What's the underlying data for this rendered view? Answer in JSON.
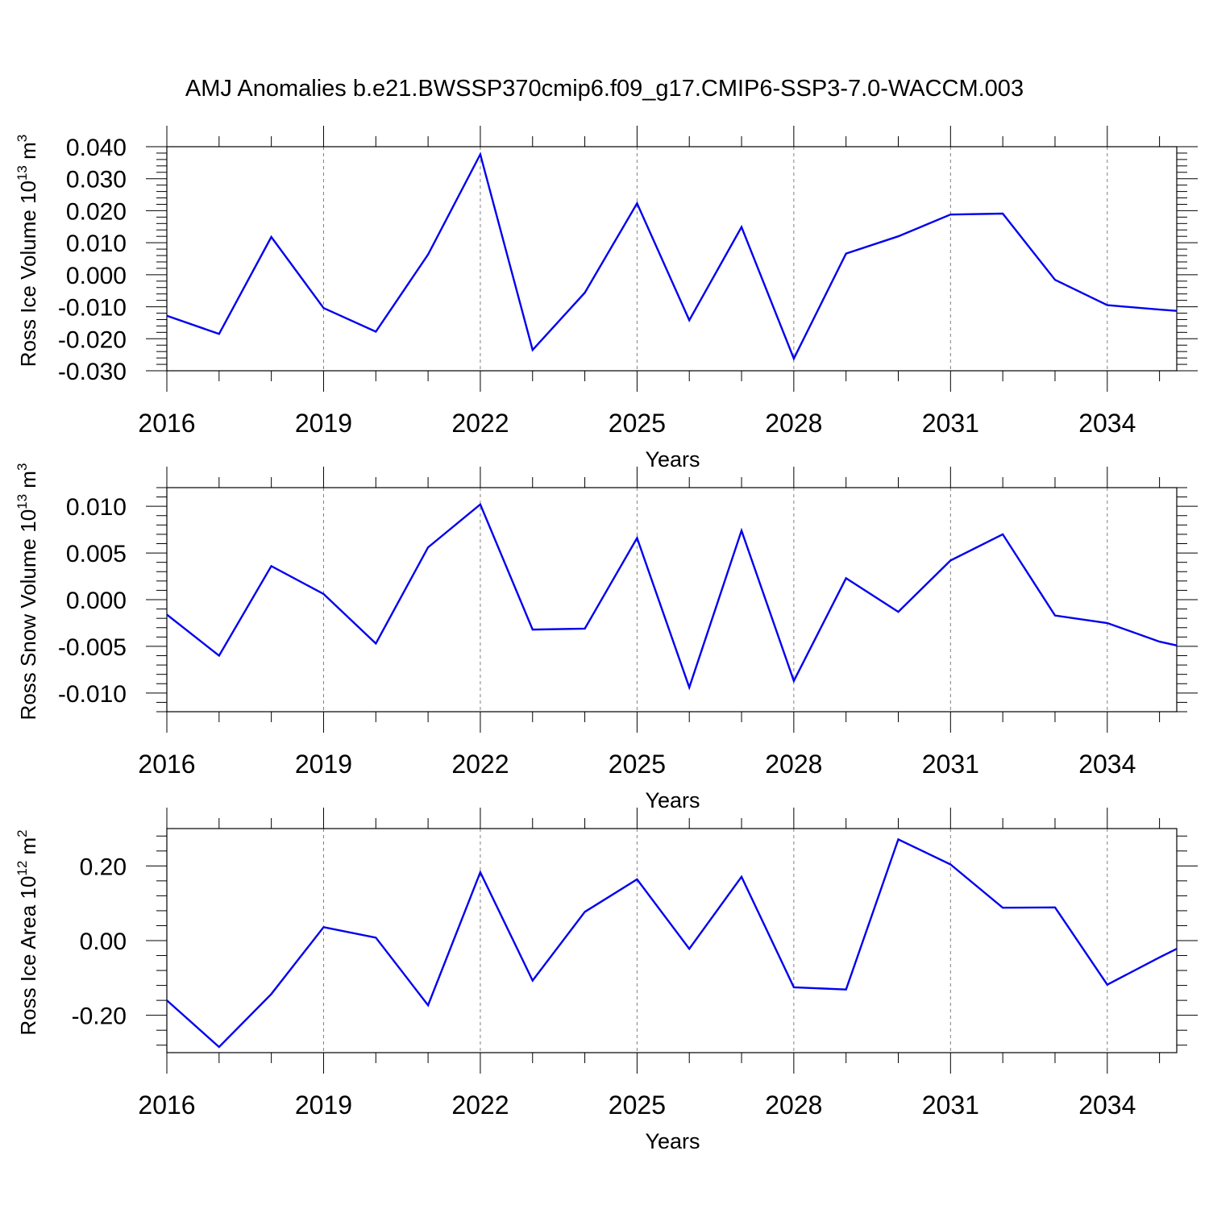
{
  "title": "AMJ Anomalies b.e21.BWSSP370cmip6.f09_g17.CMIP6-SSP3-7.0-WACCM.003",
  "chart_data": [
    {
      "type": "line",
      "ylabel": {
        "text": "Ross Ice Volume 10",
        "sup": "13",
        "unit": " m",
        "unit_sup": "3"
      },
      "xlabel": "Years",
      "xlim": [
        2016,
        2035.33
      ],
      "ylim": [
        -0.03,
        0.04
      ],
      "yticks": [
        -0.03,
        -0.02,
        -0.01,
        0.0,
        0.01,
        0.02,
        0.03,
        0.04
      ],
      "ytick_labels": [
        "-0.030",
        "-0.020",
        "-0.010",
        "0.000",
        "0.010",
        "0.020",
        "0.030",
        "0.040"
      ],
      "xticks": [
        2016,
        2019,
        2022,
        2025,
        2028,
        2031,
        2034
      ],
      "xtick_labels": [
        "2016",
        "2019",
        "2022",
        "2025",
        "2028",
        "2031",
        "2034"
      ],
      "grid_x": true,
      "color": "#0000ee",
      "x": [
        2016,
        2017,
        2018,
        2019,
        2020,
        2021,
        2022,
        2023,
        2024,
        2025,
        2026,
        2027,
        2028,
        2029,
        2030,
        2031,
        2032,
        2033,
        2034,
        2035,
        2035.33
      ],
      "values": [
        -0.0128,
        -0.0185,
        0.0118,
        -0.0104,
        -0.0178,
        0.0063,
        0.0376,
        -0.0235,
        -0.0056,
        0.0223,
        -0.0142,
        0.0149,
        -0.0262,
        0.0066,
        0.012,
        0.0188,
        0.0191,
        -0.0016,
        -0.0095,
        -0.0109,
        -0.0113
      ]
    },
    {
      "type": "line",
      "ylabel": {
        "text": "Ross Snow Volume 10",
        "sup": "13",
        "unit": " m",
        "unit_sup": "3"
      },
      "xlabel": "Years",
      "xlim": [
        2016,
        2035.33
      ],
      "ylim": [
        -0.012,
        0.012
      ],
      "yticks": [
        -0.01,
        -0.005,
        0.0,
        0.005,
        0.01
      ],
      "ytick_labels": [
        "-0.010",
        "-0.005",
        "0.000",
        "0.005",
        "0.010"
      ],
      "xticks": [
        2016,
        2019,
        2022,
        2025,
        2028,
        2031,
        2034
      ],
      "xtick_labels": [
        "2016",
        "2019",
        "2022",
        "2025",
        "2028",
        "2031",
        "2034"
      ],
      "grid_x": true,
      "color": "#0000ee",
      "x": [
        2016,
        2017,
        2018,
        2019,
        2020,
        2021,
        2022,
        2023,
        2024,
        2025,
        2026,
        2027,
        2028,
        2029,
        2030,
        2031,
        2032,
        2033,
        2034,
        2035,
        2035.33
      ],
      "values": [
        -0.0016,
        -0.006,
        0.0036,
        0.0006,
        -0.0047,
        0.0056,
        0.0102,
        -0.0032,
        -0.0031,
        0.0066,
        -0.0094,
        0.0074,
        -0.0087,
        0.0023,
        -0.0013,
        0.0042,
        0.007,
        -0.0017,
        -0.0025,
        -0.0045,
        -0.0049
      ]
    },
    {
      "type": "line",
      "ylabel": {
        "text": "Ross Ice Area 10",
        "sup": "12",
        "unit": " m",
        "unit_sup": "2"
      },
      "xlabel": "Years",
      "xlim": [
        2016,
        2035.33
      ],
      "ylim": [
        -0.3,
        0.3
      ],
      "yticks": [
        -0.2,
        0.0,
        0.2
      ],
      "ytick_labels": [
        "-0.20",
        "0.00",
        "0.20"
      ],
      "xticks": [
        2016,
        2019,
        2022,
        2025,
        2028,
        2031,
        2034
      ],
      "xtick_labels": [
        "2016",
        "2019",
        "2022",
        "2025",
        "2028",
        "2031",
        "2034"
      ],
      "grid_x": true,
      "color": "#0000ee",
      "x": [
        2016,
        2017,
        2018,
        2019,
        2020,
        2021,
        2022,
        2023,
        2024,
        2025,
        2026,
        2027,
        2028,
        2029,
        2030,
        2031,
        2032,
        2033,
        2034,
        2035,
        2035.33
      ],
      "values": [
        -0.16,
        -0.285,
        -0.143,
        0.036,
        0.008,
        -0.173,
        0.183,
        -0.107,
        0.077,
        0.164,
        -0.022,
        0.171,
        -0.125,
        -0.131,
        0.271,
        0.204,
        0.088,
        0.089,
        -0.118,
        -0.045,
        -0.022
      ]
    }
  ]
}
